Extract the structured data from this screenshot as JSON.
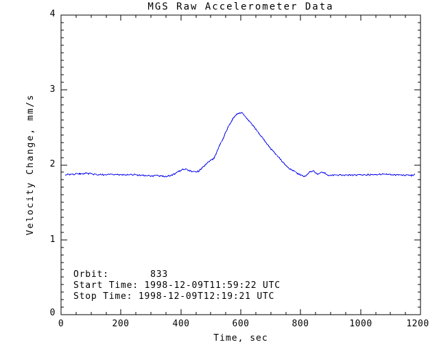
{
  "title": "MGS Raw Accelerometer Data",
  "colors": {
    "line": "#0000ee",
    "axis": "#000000",
    "background": "#ffffff",
    "text": "#000000"
  },
  "annotations": {
    "orbit_line": "Orbit:       833",
    "start_line": "Start Time: 1998-12-09T11:59:22 UTC",
    "stop_line": "Stop Time: 1998-12-09T12:19:21 UTC",
    "orbit_label": "Orbit:",
    "orbit_value": "833",
    "start_time_label": "Start Time:",
    "start_time_value": "1998-12-09T11:59:22 UTC",
    "stop_time_label": "Stop Time:",
    "stop_time_value": "1998-12-09T12:19:21 UTC"
  },
  "chart_data": {
    "type": "line",
    "title": "MGS Raw Accelerometer Data",
    "xlabel": "Time, sec",
    "ylabel": "Velocity Change, mm/s",
    "xlim": [
      0,
      1200
    ],
    "ylim": [
      0,
      4
    ],
    "grid": false,
    "legend": null,
    "x_major_ticks": [
      0,
      200,
      400,
      600,
      800,
      1000,
      1200
    ],
    "x_tick_labels": [
      "0",
      "200",
      "400",
      "600",
      "800",
      "1000",
      "1200"
    ],
    "x_minor_interval": 50,
    "y_major_ticks": [
      0,
      1,
      2,
      3,
      4
    ],
    "y_tick_labels": [
      "0",
      "1",
      "2",
      "3",
      "4"
    ],
    "y_minor_interval": 0.1,
    "series": [
      {
        "name": "velocity-change",
        "color": "#0000ee",
        "baseline_mm_s": 1.87,
        "peak": {
          "time_sec": 593,
          "value_mm_s": 2.7
        },
        "noise_amplitude": 0.01,
        "sample_step_sec": 2.5,
        "anchor_points": [
          [
            14,
            1.868
          ],
          [
            30,
            1.872
          ],
          [
            55,
            1.878
          ],
          [
            75,
            1.886
          ],
          [
            95,
            1.882
          ],
          [
            115,
            1.872
          ],
          [
            140,
            1.868
          ],
          [
            170,
            1.872
          ],
          [
            200,
            1.868
          ],
          [
            230,
            1.868
          ],
          [
            260,
            1.862
          ],
          [
            285,
            1.856
          ],
          [
            300,
            1.85
          ],
          [
            315,
            1.858
          ],
          [
            330,
            1.852
          ],
          [
            345,
            1.85
          ],
          [
            352,
            1.843
          ],
          [
            360,
            1.852
          ],
          [
            370,
            1.862
          ],
          [
            385,
            1.89
          ],
          [
            397,
            1.922
          ],
          [
            405,
            1.935
          ],
          [
            415,
            1.94
          ],
          [
            428,
            1.922
          ],
          [
            440,
            1.908
          ],
          [
            450,
            1.908
          ],
          [
            460,
            1.918
          ],
          [
            470,
            1.955
          ],
          [
            483,
            2.005
          ],
          [
            495,
            2.045
          ],
          [
            506,
            2.075
          ],
          [
            512,
            2.1
          ],
          [
            520,
            2.17
          ],
          [
            529,
            2.26
          ],
          [
            540,
            2.345
          ],
          [
            548,
            2.42
          ],
          [
            556,
            2.485
          ],
          [
            563,
            2.55
          ],
          [
            571,
            2.6
          ],
          [
            579,
            2.645
          ],
          [
            585,
            2.672
          ],
          [
            591,
            2.69
          ],
          [
            597,
            2.698
          ],
          [
            603,
            2.694
          ],
          [
            608,
            2.684
          ],
          [
            613,
            2.655
          ],
          [
            624,
            2.6
          ],
          [
            636,
            2.55
          ],
          [
            650,
            2.475
          ],
          [
            666,
            2.4
          ],
          [
            681,
            2.315
          ],
          [
            697,
            2.23
          ],
          [
            712,
            2.165
          ],
          [
            727,
            2.1
          ],
          [
            742,
            2.03
          ],
          [
            758,
            1.965
          ],
          [
            773,
            1.925
          ],
          [
            788,
            1.89
          ],
          [
            800,
            1.862
          ],
          [
            807,
            1.848
          ],
          [
            815,
            1.852
          ],
          [
            825,
            1.885
          ],
          [
            835,
            1.915
          ],
          [
            842,
            1.925
          ],
          [
            850,
            1.898
          ],
          [
            857,
            1.878
          ],
          [
            865,
            1.89
          ],
          [
            872,
            1.902
          ],
          [
            880,
            1.895
          ],
          [
            888,
            1.868
          ],
          [
            896,
            1.858
          ],
          [
            910,
            1.862
          ],
          [
            930,
            1.865
          ],
          [
            960,
            1.865
          ],
          [
            990,
            1.865
          ],
          [
            1020,
            1.866
          ],
          [
            1050,
            1.87
          ],
          [
            1075,
            1.878
          ],
          [
            1090,
            1.875
          ],
          [
            1110,
            1.868
          ],
          [
            1140,
            1.865
          ],
          [
            1163,
            1.858
          ],
          [
            1175,
            1.862
          ],
          [
            1182,
            1.885
          ]
        ]
      }
    ],
    "annotations": [
      "Orbit:       833",
      "Start Time: 1998-12-09T11:59:22 UTC",
      "Stop Time: 1998-12-09T12:19:21 UTC"
    ]
  }
}
